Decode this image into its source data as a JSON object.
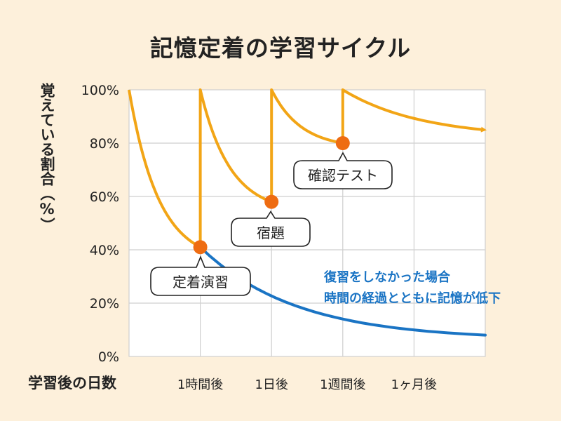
{
  "chart_data": {
    "type": "line",
    "title": "記憶定着の学習サイクル",
    "ylabel": "覚えている割合（%）",
    "xlabel": "学習後の日数",
    "ylim": [
      0,
      100
    ],
    "y_ticks": [
      "100%",
      "80%",
      "60%",
      "40%",
      "20%",
      "0%"
    ],
    "x_ticks": [
      "1時間後",
      "1日後",
      "1週間後",
      "1ヶ月後"
    ],
    "grid": true,
    "colors": {
      "review": "#f2a516",
      "no_review": "#1a74c4",
      "marker": "#ee6c12"
    },
    "series": [
      {
        "name": "",
        "color": "#1a74c4",
        "points": [
          [
            0,
            100
          ],
          [
            1,
            41
          ],
          [
            2,
            23
          ],
          [
            3,
            15
          ],
          [
            4,
            10
          ],
          [
            5,
            8
          ]
        ]
      },
      {
        "name": "",
        "color": "#f2a516",
        "points": [
          [
            0,
            100
          ],
          [
            1,
            41
          ],
          [
            1,
            100
          ],
          [
            2,
            58
          ],
          [
            2,
            100
          ],
          [
            3,
            80
          ],
          [
            3,
            100
          ],
          [
            5,
            85
          ]
        ]
      }
    ],
    "markers": [
      {
        "x": 1,
        "y": 41,
        "label": "定着演習"
      },
      {
        "x": 2,
        "y": 58,
        "label": "宿題"
      },
      {
        "x": 3,
        "y": 80,
        "label": "確認テスト"
      }
    ],
    "annotation": [
      "復習をしなかった場合",
      "時間の経過とともに記憶が低下"
    ]
  }
}
